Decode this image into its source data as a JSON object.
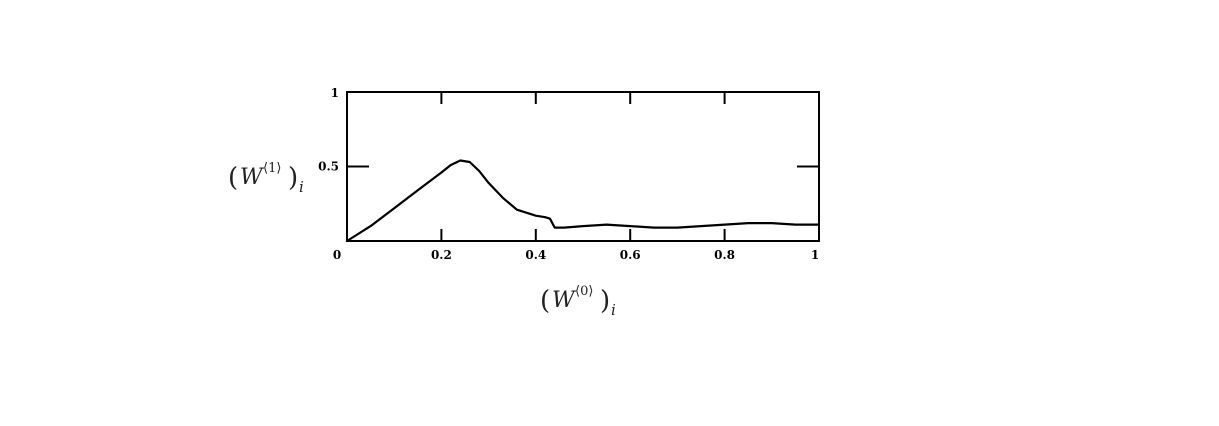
{
  "chart_data": {
    "type": "line",
    "xlabel": {
      "base": "W",
      "superscript": "⟨0⟩",
      "subscript": "i"
    },
    "ylabel": {
      "base": "W",
      "superscript": "⟨1⟩",
      "subscript": "i"
    },
    "xlim": [
      0,
      1
    ],
    "ylim": [
      0,
      1
    ],
    "x_ticks": [
      0,
      0.2,
      0.4,
      0.6,
      0.8,
      1
    ],
    "x_tick_labels": [
      "0",
      "0.2",
      "0.4",
      "0.6",
      "0.8",
      "1"
    ],
    "y_ticks": [
      0.5,
      1
    ],
    "y_tick_labels": [
      "0.5",
      "1"
    ],
    "grid": false,
    "series": [
      {
        "color": "#000000",
        "x": [
          0,
          0.05,
          0.1,
          0.15,
          0.2,
          0.22,
          0.24,
          0.26,
          0.28,
          0.3,
          0.33,
          0.36,
          0.38,
          0.4,
          0.42,
          0.43,
          0.44,
          0.46,
          0.5,
          0.55,
          0.6,
          0.65,
          0.7,
          0.75,
          0.8,
          0.85,
          0.9,
          0.95,
          1.0
        ],
        "y": [
          0,
          0.1,
          0.22,
          0.34,
          0.46,
          0.51,
          0.54,
          0.53,
          0.47,
          0.39,
          0.29,
          0.21,
          0.19,
          0.17,
          0.16,
          0.15,
          0.09,
          0.09,
          0.1,
          0.11,
          0.1,
          0.09,
          0.09,
          0.1,
          0.11,
          0.12,
          0.12,
          0.11,
          0.11
        ]
      }
    ]
  }
}
